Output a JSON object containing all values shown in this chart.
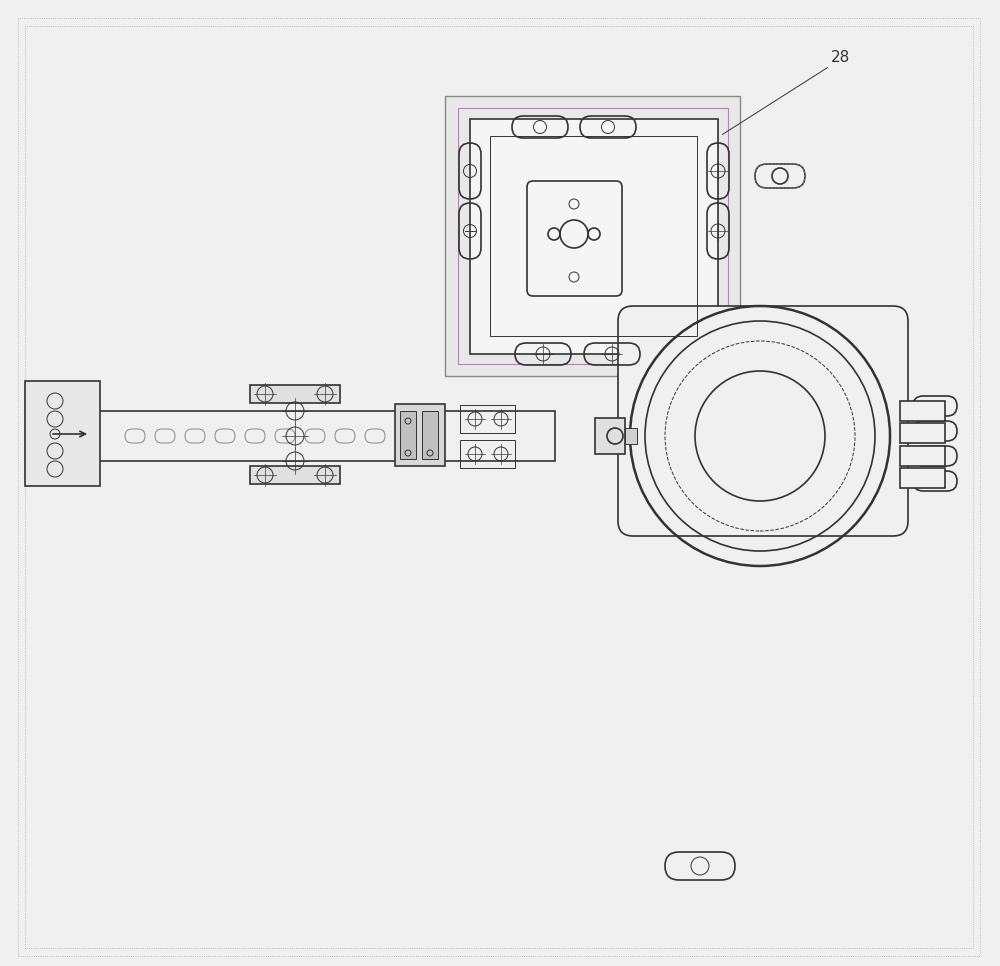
{
  "bg_color": "#f0f0f0",
  "border_color": "#888888",
  "line_color": "#333333",
  "light_gray": "#cccccc",
  "medium_gray": "#999999",
  "purple_tint": "#ccaacc",
  "label_28": "28",
  "fig_width": 10.0,
  "fig_height": 9.66,
  "dpi": 100
}
